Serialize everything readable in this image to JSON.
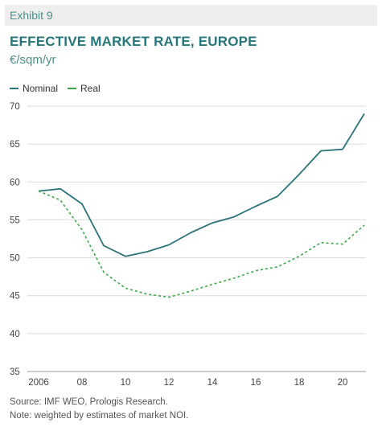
{
  "header": {
    "exhibit": "Exhibit 9",
    "title": "EFFECTIVE MARKET RATE, EUROPE",
    "subtitle": "€/sqm/yr"
  },
  "legend": {
    "nominal_label": "Nominal",
    "real_label": "Real"
  },
  "footer": {
    "source": "Source: IMF WEO, Prologis Research.",
    "note": "Note: weighted by estimates of market NOI."
  },
  "colors": {
    "nominal": "#2b7378",
    "real": "#3fa64a",
    "title": "#27767a"
  },
  "chart_data": {
    "type": "line",
    "title": "EFFECTIVE MARKET RATE, EUROPE",
    "ylabel": "€/sqm/yr",
    "xlabel": "",
    "legend_position": "top-left",
    "grid": "horizontal",
    "ylim": [
      35,
      70
    ],
    "xlim": [
      2006,
      2021
    ],
    "yticks": [
      35,
      40,
      45,
      50,
      55,
      60,
      65,
      70
    ],
    "xticks": [
      2006,
      2008,
      2010,
      2012,
      2014,
      2016,
      2018,
      2020
    ],
    "xtick_labels": [
      "2006",
      "08",
      "10",
      "12",
      "14",
      "16",
      "18",
      "20"
    ],
    "x": [
      2006,
      2007,
      2008,
      2009,
      2010,
      2011,
      2012,
      2013,
      2014,
      2015,
      2016,
      2017,
      2018,
      2019,
      2020,
      2021
    ],
    "series": [
      {
        "name": "Nominal",
        "style": "solid",
        "values": [
          58.8,
          59.1,
          57.1,
          51.6,
          50.2,
          50.8,
          51.7,
          53.3,
          54.6,
          55.4,
          56.8,
          58.1,
          61.0,
          64.1,
          64.3,
          69.0
        ]
      },
      {
        "name": "Real",
        "style": "dashed",
        "values": [
          58.8,
          57.6,
          53.7,
          48.1,
          46.0,
          45.2,
          44.8,
          45.6,
          46.5,
          47.3,
          48.3,
          48.8,
          50.2,
          52.0,
          51.8,
          54.3
        ]
      }
    ]
  }
}
